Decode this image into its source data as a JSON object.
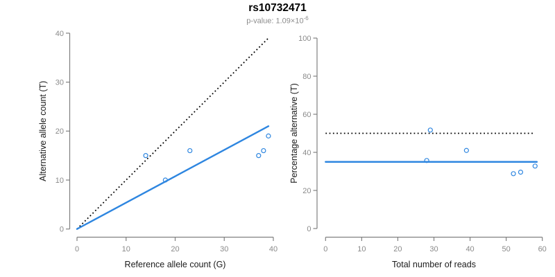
{
  "header": {
    "title": "rs10732471",
    "p_value_base": "p-value: 1.09×10",
    "p_value_exp": "-6"
  },
  "colors": {
    "accent_blue": "#2E86E0",
    "dotted_black": "#000000",
    "axis_gray": "#808080",
    "tick_text_gray": "#8a8a8a",
    "label_black": "#1a1a1a"
  },
  "chart_data": [
    {
      "type": "scatter",
      "title": "rs10732471",
      "subtitle": "p-value: 1.09×10^-6",
      "xlabel": "Reference allele count (G)",
      "ylabel": "Alternative allele count (T)",
      "xlim": [
        0,
        40
      ],
      "ylim": [
        0,
        40
      ],
      "xticks": [
        0,
        10,
        20,
        30,
        40
      ],
      "yticks": [
        0,
        10,
        20,
        30,
        40
      ],
      "grid": false,
      "points": [
        [
          14,
          15
        ],
        [
          18,
          10
        ],
        [
          23,
          16
        ],
        [
          37,
          15
        ],
        [
          38,
          16
        ],
        [
          39,
          19
        ]
      ],
      "lines": [
        {
          "name": "identity-line",
          "style": "dotted",
          "color": "#000000",
          "x1": 0,
          "y1": 0,
          "x2": 39,
          "y2": 39
        },
        {
          "name": "fitted-proportion-line",
          "style": "solid",
          "color": "#2E86E0",
          "x1": 0,
          "y1": 0,
          "x2": 39,
          "y2": 21
        }
      ]
    },
    {
      "type": "scatter",
      "xlabel": "Total number of reads",
      "ylabel": "Percentage alternative (T)",
      "xlim": [
        0,
        60
      ],
      "ylim": [
        0,
        100
      ],
      "xticks": [
        0,
        10,
        20,
        30,
        40,
        50,
        60
      ],
      "yticks": [
        0,
        20,
        40,
        60,
        80,
        100
      ],
      "grid": false,
      "points": [
        [
          29,
          51.7
        ],
        [
          28,
          35.7
        ],
        [
          39,
          41
        ],
        [
          52,
          28.8
        ],
        [
          54,
          29.6
        ],
        [
          58,
          32.8
        ]
      ],
      "lines": [
        {
          "name": "null-50pct-line",
          "style": "dotted",
          "color": "#000000",
          "x1": 0,
          "y1": 50,
          "x2": 57.5,
          "y2": 50
        },
        {
          "name": "fitted-35pct-line",
          "style": "solid",
          "color": "#2E86E0",
          "x1": 0,
          "y1": 35,
          "x2": 58.5,
          "y2": 35
        }
      ]
    }
  ]
}
